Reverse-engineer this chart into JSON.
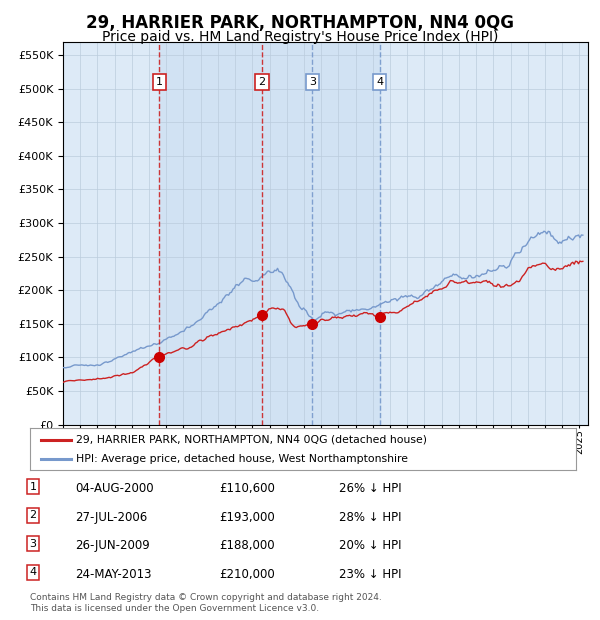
{
  "title": "29, HARRIER PARK, NORTHAMPTON, NN4 0QG",
  "subtitle": "Price paid vs. HM Land Registry's House Price Index (HPI)",
  "title_fontsize": 12,
  "subtitle_fontsize": 10,
  "background_color": "#ffffff",
  "plot_bg_color": "#ddeaf7",
  "grid_color": "#bbccdd",
  "hpi_line_color": "#7799cc",
  "price_line_color": "#cc2222",
  "marker_color": "#cc0000",
  "transactions": [
    {
      "label": "1",
      "date_num": 2000.587,
      "price": 110600,
      "vline_color": "#cc2222"
    },
    {
      "label": "2",
      "date_num": 2006.569,
      "price": 193000,
      "vline_color": "#cc2222"
    },
    {
      "label": "3",
      "date_num": 2009.486,
      "price": 188000,
      "vline_color": "#7799cc"
    },
    {
      "label": "4",
      "date_num": 2013.388,
      "price": 210000,
      "vline_color": "#7799cc"
    }
  ],
  "transaction_info": [
    {
      "num": "1",
      "date": "04-AUG-2000",
      "price": "£110,600",
      "hpi": "26% ↓ HPI"
    },
    {
      "num": "2",
      "date": "27-JUL-2006",
      "price": "£193,000",
      "hpi": "28% ↓ HPI"
    },
    {
      "num": "3",
      "date": "26-JUN-2009",
      "price": "£188,000",
      "hpi": "20% ↓ HPI"
    },
    {
      "num": "4",
      "date": "24-MAY-2013",
      "price": "£210,000",
      "hpi": "23% ↓ HPI"
    }
  ],
  "legend_entries": [
    {
      "label": "29, HARRIER PARK, NORTHAMPTON, NN4 0QG (detached house)",
      "color": "#cc2222"
    },
    {
      "label": "HPI: Average price, detached house, West Northamptonshire",
      "color": "#7799cc"
    }
  ],
  "footer": "Contains HM Land Registry data © Crown copyright and database right 2024.\nThis data is licensed under the Open Government Licence v3.0.",
  "ylim": [
    0,
    570000
  ],
  "yticks": [
    0,
    50000,
    100000,
    150000,
    200000,
    250000,
    300000,
    350000,
    400000,
    450000,
    500000,
    550000
  ],
  "xlim_start": 1995.0,
  "xlim_end": 2025.5,
  "shaded_region": [
    2000.587,
    2013.388
  ]
}
